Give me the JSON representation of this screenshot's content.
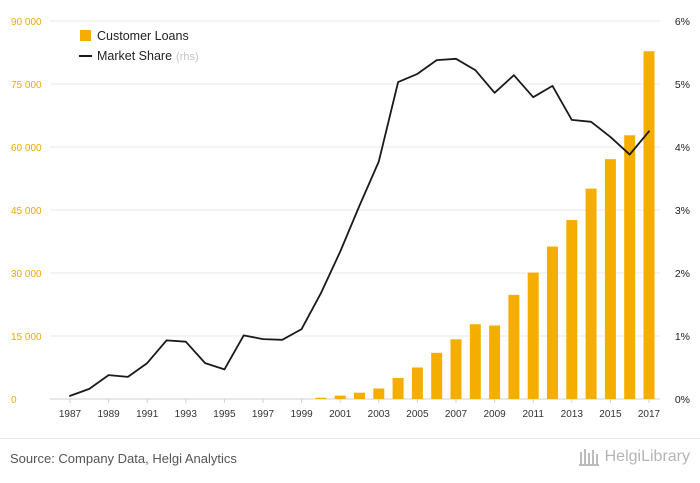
{
  "chart_data": {
    "type": "bar+line",
    "x_ticks": [
      "1987",
      "1989",
      "1991",
      "1993",
      "1995",
      "1997",
      "1999",
      "2001",
      "2003",
      "2005",
      "2007",
      "2009",
      "2011",
      "2013",
      "2015",
      "2017"
    ],
    "y_left_ticks": [
      "0",
      "15 000",
      "30 000",
      "45 000",
      "60 000",
      "75 000",
      "90 000"
    ],
    "y_right_ticks": [
      "0%",
      "1%",
      "2%",
      "3%",
      "4%",
      "5%",
      "6%"
    ],
    "ylim_left": [
      0,
      90000
    ],
    "ylim_right": [
      0,
      6
    ],
    "grid": true,
    "legend_position": "top-left",
    "colors": {
      "bars": "#f5ae00",
      "line": "#1a1a1a",
      "left_axis_text": "#f0a800",
      "right_axis_text": "#222222",
      "x_axis_text": "#333333",
      "grid": "#e9e9e9"
    },
    "legend": [
      {
        "label": "Customer Loans",
        "suffix": ""
      },
      {
        "label": "Market Share",
        "suffix": "(rhs)"
      }
    ],
    "series": [
      {
        "name": "Customer Loans",
        "kind": "bar",
        "axis": "left",
        "x": [
          2000,
          2001,
          2002,
          2003,
          2004,
          2005,
          2006,
          2007,
          2008,
          2009,
          2010,
          2011,
          2012,
          2013,
          2014,
          2015,
          2016,
          2017
        ],
        "values": [
          300,
          800,
          1500,
          2500,
          5000,
          7500,
          11000,
          14200,
          17800,
          17500,
          24800,
          30100,
          36300,
          42600,
          50100,
          57100,
          62800,
          82800
        ]
      },
      {
        "name": "Market Share",
        "kind": "line",
        "axis": "right",
        "x": [
          1987,
          1988,
          1989,
          1990,
          1991,
          1992,
          1993,
          1994,
          1995,
          1996,
          1997,
          1998,
          1999,
          2000,
          2001,
          2002,
          2003,
          2004,
          2005,
          2006,
          2007,
          2008,
          2009,
          2010,
          2011,
          2012,
          2013,
          2014,
          2015,
          2016,
          2017
        ],
        "values": [
          0.05,
          0.16,
          0.38,
          0.35,
          0.57,
          0.93,
          0.91,
          0.57,
          0.47,
          1.01,
          0.95,
          0.94,
          1.11,
          1.68,
          2.34,
          3.07,
          3.77,
          5.03,
          5.16,
          5.38,
          5.4,
          5.22,
          4.86,
          5.14,
          4.79,
          4.97,
          4.43,
          4.4,
          4.16,
          3.88,
          4.25
        ]
      }
    ]
  },
  "footer": {
    "source": "Source: Company Data, Helgi Analytics",
    "logo_text": "HelgiLibrary"
  }
}
